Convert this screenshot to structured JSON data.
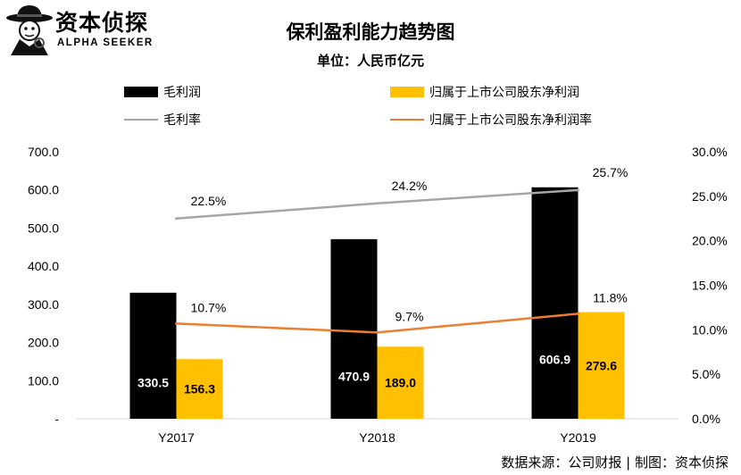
{
  "logo": {
    "cn": "资本侦探",
    "en": "ALPHA SEEKER"
  },
  "colors": {
    "gross_profit": "#000000",
    "net_profit": "#FFC000",
    "gross_margin": "#A6A6A6",
    "net_margin": "#ED7D31"
  },
  "chart_data": {
    "type": "bar",
    "title": "保利盈利能力趋势图",
    "subtitle": "单位：人民币亿元",
    "categories": [
      "Y2017",
      "Y2018",
      "Y2019"
    ],
    "series": [
      {
        "name": "毛利润",
        "type": "bar",
        "axis": "left",
        "values": [
          330.5,
          470.9,
          606.9
        ],
        "labels": [
          "330.5",
          "470.9",
          "606.9"
        ]
      },
      {
        "name": "归属于上市公司股东净利润",
        "type": "bar",
        "axis": "left",
        "values": [
          156.3,
          189.0,
          279.6
        ],
        "labels": [
          "156.3",
          "189.0",
          "279.6"
        ]
      },
      {
        "name": "毛利率",
        "type": "line",
        "axis": "right",
        "values": [
          22.5,
          24.2,
          25.7
        ],
        "labels": [
          "22.5%",
          "24.2%",
          "25.7%"
        ]
      },
      {
        "name": "归属于上市公司股东净利润率",
        "type": "line",
        "axis": "right",
        "values": [
          10.7,
          9.7,
          11.8
        ],
        "labels": [
          "10.7%",
          "9.7%",
          "11.8%"
        ]
      }
    ],
    "y_left": {
      "range": [
        0,
        700
      ],
      "ticks": [
        "-",
        "100.0",
        "200.0",
        "300.0",
        "400.0",
        "500.0",
        "600.0",
        "700.0"
      ]
    },
    "y_right": {
      "range": [
        0,
        30
      ],
      "ticks": [
        "0.0%",
        "5.0%",
        "10.0%",
        "15.0%",
        "20.0%",
        "25.0%",
        "30.0%"
      ]
    },
    "grid": false,
    "legend_position": "top"
  },
  "source": "数据来源：公司财报 | 制图：资本侦探"
}
